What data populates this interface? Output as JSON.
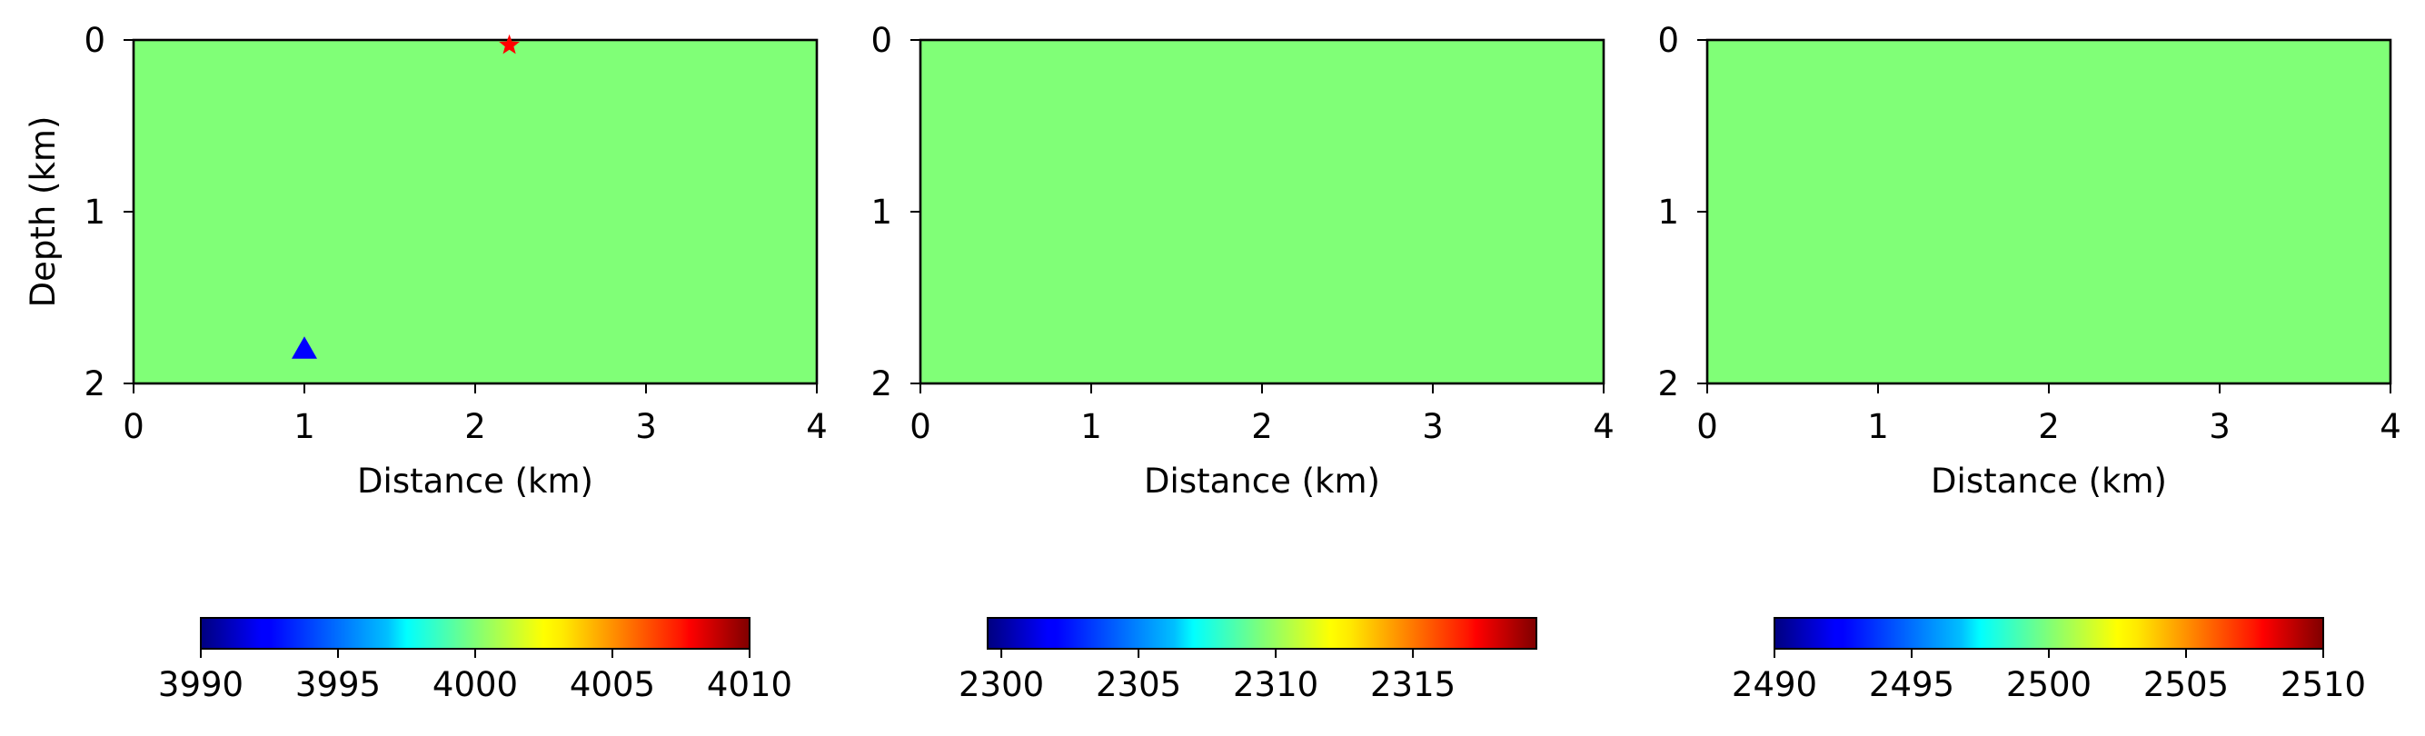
{
  "colors": {
    "field": "#80ff77",
    "source_marker": "#ff0000",
    "receiver_marker": "#0000ff"
  },
  "chart_data": [
    {
      "type": "heatmap",
      "xlabel": "Distance (km)",
      "ylabel": "Depth (km)",
      "xlim": [
        0,
        4
      ],
      "ylim": [
        2,
        0
      ],
      "x_ticks": [
        "0",
        "1",
        "2",
        "3",
        "4"
      ],
      "y_ticks": [
        "0",
        "1",
        "2"
      ],
      "field_value": 4000,
      "colorbar": {
        "min": 3990,
        "max": 4010,
        "colormap": "jet",
        "ticks": [
          "3990",
          "3995",
          "4000",
          "4005",
          "4010"
        ]
      },
      "markers": [
        {
          "shape": "star",
          "x": 2.2,
          "y": 0.03,
          "color": "#ff0000"
        },
        {
          "shape": "triangle",
          "x": 1.0,
          "y": 1.8,
          "color": "#0000ff"
        }
      ]
    },
    {
      "type": "heatmap",
      "xlabel": "Distance (km)",
      "ylabel": "",
      "xlim": [
        0,
        4
      ],
      "ylim": [
        2,
        0
      ],
      "x_ticks": [
        "0",
        "1",
        "2",
        "3",
        "4"
      ],
      "y_ticks": [
        "0",
        "1",
        "2"
      ],
      "field_value": 2309.5,
      "colorbar": {
        "min": 2299.5,
        "max": 2319.5,
        "colormap": "jet",
        "ticks": [
          "2300",
          "2305",
          "2310",
          "2315"
        ]
      },
      "markers": []
    },
    {
      "type": "heatmap",
      "xlabel": "Distance (km)",
      "ylabel": "",
      "xlim": [
        0,
        4
      ],
      "ylim": [
        2,
        0
      ],
      "x_ticks": [
        "0",
        "1",
        "2",
        "3",
        "4"
      ],
      "y_ticks": [
        "0",
        "1",
        "2"
      ],
      "field_value": 2500,
      "colorbar": {
        "min": 2490,
        "max": 2510,
        "colormap": "jet",
        "ticks": [
          "2490",
          "2495",
          "2500",
          "2505",
          "2510"
        ]
      },
      "markers": []
    }
  ]
}
